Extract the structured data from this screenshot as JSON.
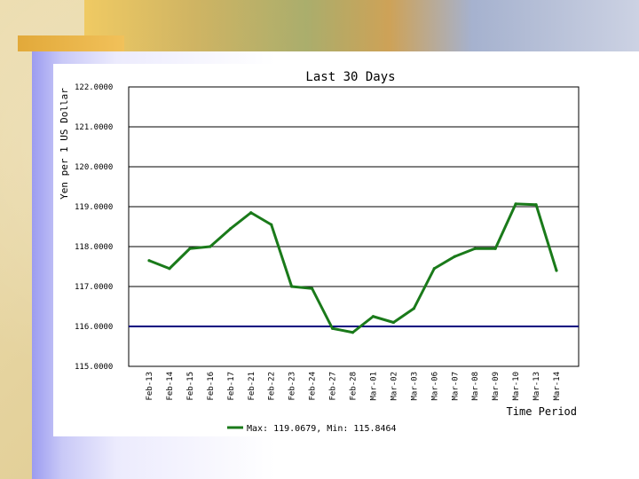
{
  "chart_data": {
    "type": "line",
    "title": "Last 30 Days",
    "ylabel": "Yen per 1 US Dollar",
    "xlabel": "Time Period",
    "ylim": [
      115,
      122
    ],
    "y_ticks": [
      "122.0000",
      "121.0000",
      "120.0000",
      "119.0000",
      "118.0000",
      "117.0000",
      "116.0000",
      "115.0000"
    ],
    "categories": [
      "Feb-13",
      "Feb-14",
      "Feb-15",
      "Feb-16",
      "Feb-17",
      "Feb-21",
      "Feb-22",
      "Feb-23",
      "Feb-24",
      "Feb-27",
      "Feb-28",
      "Mar-01",
      "Mar-02",
      "Mar-03",
      "Mar-06",
      "Mar-07",
      "Mar-08",
      "Mar-09",
      "Mar-10",
      "Mar-13",
      "Mar-14"
    ],
    "series": [
      {
        "name": "Max: 119.0679, Min: 115.8464",
        "color": "#1a7a1a",
        "values": [
          117.65,
          117.45,
          117.95,
          118.0,
          118.45,
          118.85,
          118.55,
          117.0,
          116.95,
          115.95,
          115.85,
          116.25,
          116.1,
          116.45,
          117.45,
          117.75,
          117.95,
          117.95,
          119.07,
          119.05,
          117.4
        ]
      }
    ],
    "reference_line": {
      "value": 116.0,
      "color": "#000080"
    },
    "grid": true,
    "legend_position": "bottom",
    "legend_text": "Max: 119.0679, Min: 115.8464"
  }
}
